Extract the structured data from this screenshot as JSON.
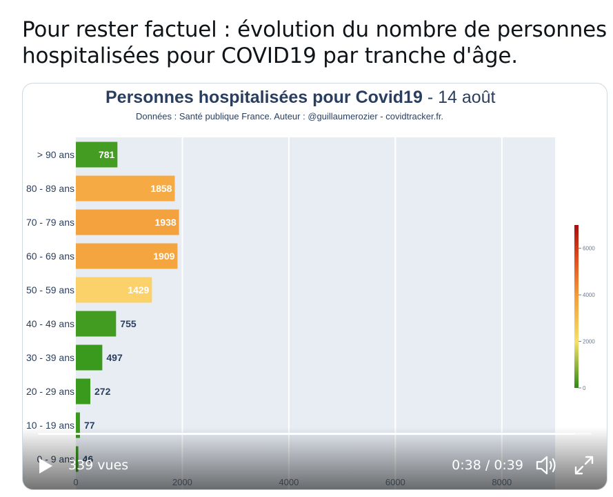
{
  "tweet": {
    "text_line1": "Pour rester factuel : évolution du nombre de personnes",
    "text_line2": "hospitalisées pour COVID19 par tranche d'âge."
  },
  "chart_data": {
    "type": "bar",
    "orientation": "horizontal",
    "title_bold": "Personnes hospitalisées pour Covid19",
    "title_date": " - 14 août",
    "subtitle": "Données : Santé publique France. Auteur : @guillaumerozier - covidtracker.fr.",
    "categories": [
      "> 90 ans",
      "80 - 89 ans",
      "70 - 79 ans",
      "60 - 69 ans",
      "50 - 59 ans",
      "40 - 49 ans",
      "30 - 39 ans",
      "20 - 29 ans",
      "10 - 19 ans",
      "0 - 9 ans"
    ],
    "values": [
      781,
      1858,
      1938,
      1909,
      1429,
      755,
      497,
      272,
      77,
      46
    ],
    "xlim": [
      0,
      9000
    ],
    "x_ticks": [
      0,
      2000,
      4000,
      6000,
      8000
    ],
    "colorbar": {
      "min": 0,
      "max": 7000,
      "ticks": [
        0,
        2000,
        4000,
        6000
      ]
    },
    "colors": {
      "plot_bg": "#e8edf4",
      "title": "#2a3f5f",
      "low": "#3a9a1e",
      "mid": "#fbd46c",
      "high": "#f4a13c",
      "top": "#b50f10"
    }
  },
  "video": {
    "views": "339 vues",
    "time": "0:38 / 0:39",
    "progress": 0.97,
    "icons": {
      "play": "play-icon",
      "volume": "volume-icon",
      "fullscreen": "fullscreen-icon"
    }
  }
}
